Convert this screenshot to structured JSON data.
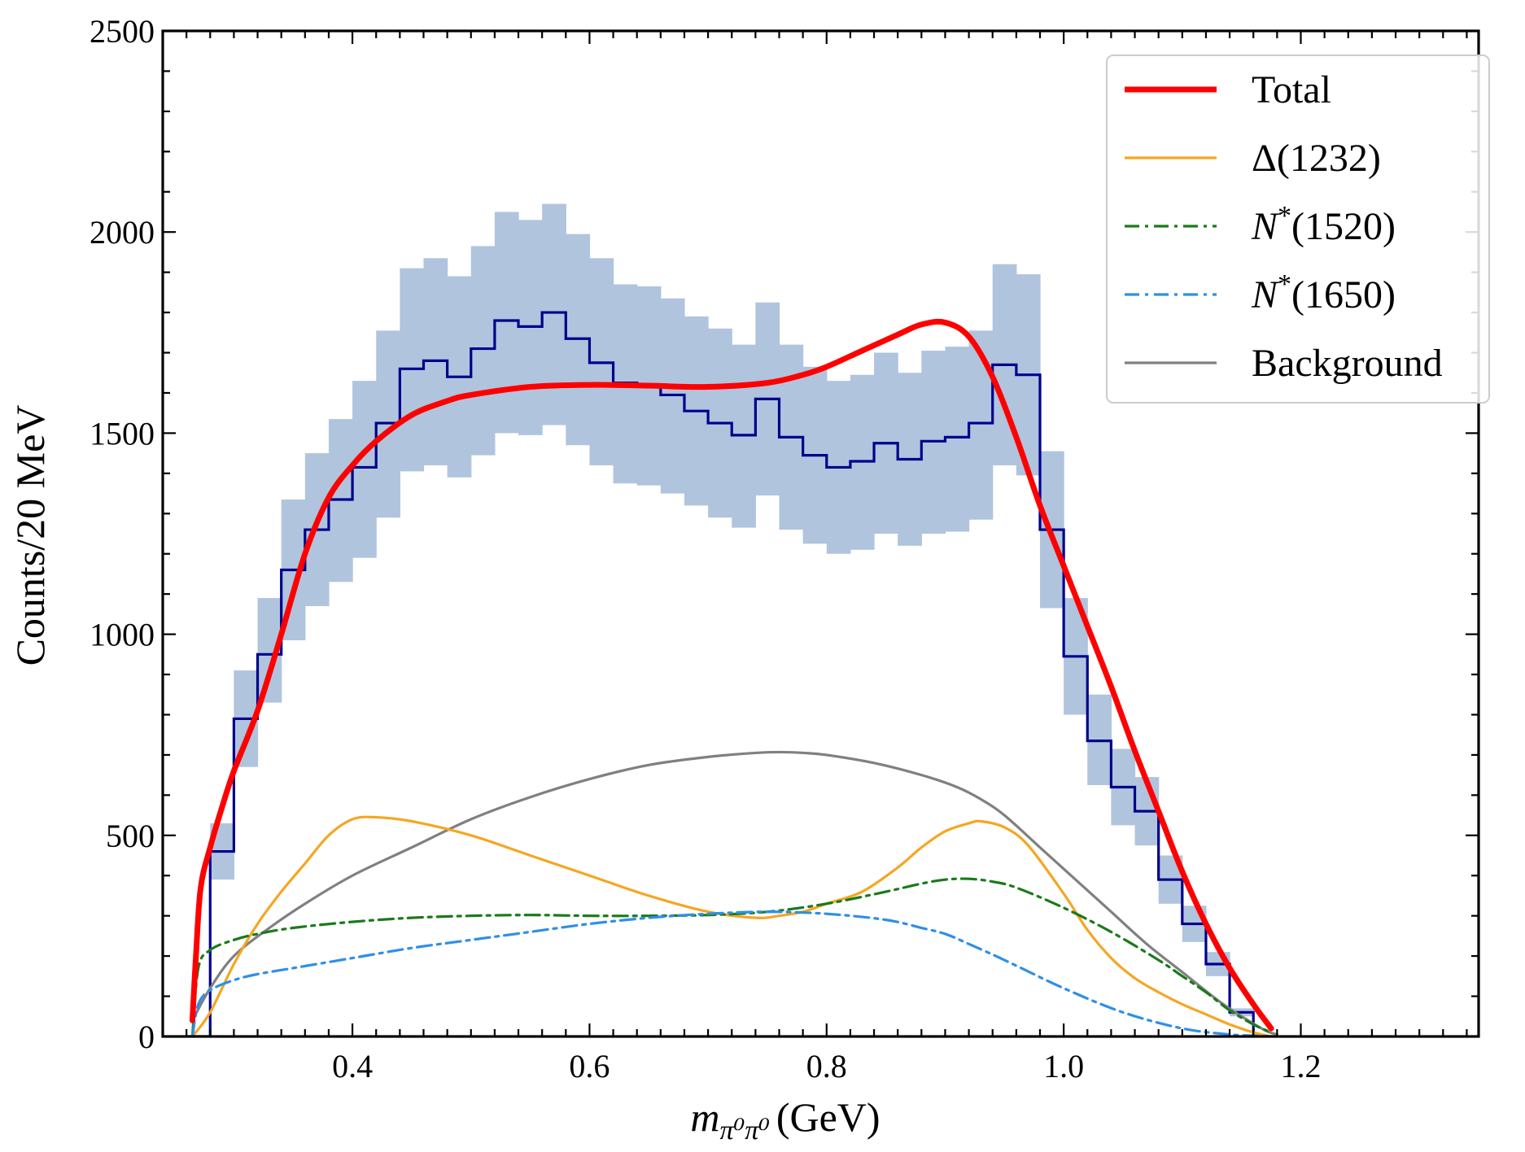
{
  "chart_data": {
    "type": "line",
    "xlabel": {
      "symbol": "m",
      "subscript": "π⁰π⁰",
      "unit": "(GeV)"
    },
    "ylabel": "Counts/20 MeV",
    "xlim": [
      0.24,
      1.35
    ],
    "ylim": [
      0,
      2500
    ],
    "xticks": [
      "0.4",
      "0.6",
      "0.8",
      "1.0",
      "1.2"
    ],
    "xtick_values": [
      0.4,
      0.6,
      0.8,
      1.0,
      1.2
    ],
    "yticks": [
      "0",
      "500",
      "1000",
      "1500",
      "2000",
      "2500"
    ],
    "ytick_values": [
      0,
      500,
      1000,
      1500,
      2000,
      2500
    ],
    "legend_position": "top-right",
    "grid": false,
    "histogram": {
      "bin_edges": [
        0.26,
        0.28,
        0.3,
        0.32,
        0.34,
        0.36,
        0.38,
        0.4,
        0.42,
        0.44,
        0.46,
        0.48,
        0.5,
        0.52,
        0.54,
        0.56,
        0.58,
        0.6,
        0.62,
        0.64,
        0.66,
        0.68,
        0.7,
        0.72,
        0.74,
        0.76,
        0.78,
        0.8,
        0.82,
        0.84,
        0.86,
        0.88,
        0.9,
        0.92,
        0.94,
        0.96,
        0.98,
        1.0,
        1.02,
        1.04,
        1.06,
        1.08,
        1.1,
        1.12,
        1.14,
        1.16,
        1.18
      ],
      "values": [
        0,
        460,
        790,
        950,
        1160,
        1260,
        1335,
        1415,
        1525,
        1660,
        1680,
        1640,
        1710,
        1780,
        1765,
        1800,
        1735,
        1675,
        1625,
        1620,
        1595,
        1555,
        1525,
        1495,
        1585,
        1490,
        1445,
        1415,
        1430,
        1475,
        1435,
        1480,
        1490,
        1525,
        1670,
        1645,
        1260,
        945,
        735,
        620,
        560,
        390,
        280,
        180,
        60,
        0
      ],
      "band_low": [
        0,
        390,
        670,
        830,
        985,
        1070,
        1130,
        1190,
        1290,
        1405,
        1420,
        1390,
        1445,
        1500,
        1495,
        1520,
        1470,
        1420,
        1375,
        1370,
        1350,
        1320,
        1290,
        1265,
        1345,
        1260,
        1225,
        1200,
        1210,
        1250,
        1220,
        1250,
        1255,
        1285,
        1420,
        1395,
        1065,
        800,
        625,
        525,
        475,
        330,
        235,
        150,
        50,
        0
      ],
      "band_high": [
        0,
        530,
        910,
        1090,
        1335,
        1450,
        1535,
        1630,
        1755,
        1910,
        1935,
        1890,
        1965,
        2050,
        2030,
        2070,
        1995,
        1935,
        1870,
        1865,
        1835,
        1790,
        1760,
        1720,
        1825,
        1720,
        1665,
        1630,
        1645,
        1700,
        1650,
        1705,
        1715,
        1755,
        1920,
        1895,
        1455,
        1090,
        850,
        715,
        645,
        450,
        325,
        210,
        70,
        0
      ],
      "line_color": "#00008b",
      "band_color": "#b0c4de"
    },
    "series": [
      {
        "name": "Total",
        "color": "#ff0000",
        "style": "solid",
        "x": [
          0.265,
          0.268,
          0.272,
          0.28,
          0.29,
          0.3,
          0.32,
          0.34,
          0.36,
          0.38,
          0.4,
          0.42,
          0.45,
          0.48,
          0.5,
          0.55,
          0.6,
          0.65,
          0.7,
          0.75,
          0.78,
          0.8,
          0.83,
          0.86,
          0.88,
          0.9,
          0.92,
          0.94,
          0.96,
          0.98,
          1.0,
          1.02,
          1.04,
          1.06,
          1.08,
          1.1,
          1.12,
          1.14,
          1.16,
          1.175
        ],
        "y": [
          40,
          200,
          370,
          470,
          570,
          660,
          810,
          1000,
          1200,
          1340,
          1420,
          1480,
          1545,
          1580,
          1595,
          1615,
          1620,
          1618,
          1615,
          1625,
          1645,
          1665,
          1705,
          1745,
          1770,
          1775,
          1740,
          1640,
          1490,
          1320,
          1170,
          1020,
          870,
          710,
          560,
          410,
          280,
          170,
          80,
          20
        ]
      },
      {
        "name": "Δ(1232)",
        "color": "#f5a623",
        "style": "solid",
        "x": [
          0.265,
          0.28,
          0.3,
          0.32,
          0.34,
          0.36,
          0.38,
          0.4,
          0.42,
          0.45,
          0.5,
          0.55,
          0.6,
          0.65,
          0.7,
          0.74,
          0.76,
          0.78,
          0.8,
          0.83,
          0.86,
          0.88,
          0.9,
          0.92,
          0.93,
          0.95,
          0.97,
          1.0,
          1.02,
          1.04,
          1.06,
          1.08,
          1.1,
          1.12,
          1.14,
          1.16,
          1.175
        ],
        "y": [
          0,
          60,
          180,
          280,
          360,
          430,
          500,
          540,
          545,
          535,
          500,
          450,
          400,
          350,
          310,
          295,
          300,
          310,
          330,
          360,
          420,
          470,
          510,
          530,
          535,
          520,
          475,
          355,
          265,
          195,
          145,
          110,
          80,
          55,
          30,
          10,
          0
        ]
      },
      {
        "name": "N*(1520)",
        "color": "#1a7a1a",
        "style": "dashdot",
        "x": [
          0.265,
          0.27,
          0.28,
          0.3,
          0.32,
          0.35,
          0.4,
          0.45,
          0.5,
          0.55,
          0.6,
          0.65,
          0.7,
          0.75,
          0.8,
          0.85,
          0.88,
          0.9,
          0.92,
          0.94,
          0.96,
          1.0,
          1.04,
          1.08,
          1.1,
          1.12,
          1.14,
          1.16,
          1.175
        ],
        "y": [
          0,
          170,
          215,
          240,
          255,
          270,
          285,
          295,
          300,
          302,
          300,
          300,
          302,
          310,
          330,
          360,
          380,
          390,
          392,
          385,
          370,
          320,
          260,
          190,
          150,
          110,
          65,
          30,
          10
        ]
      },
      {
        "name": "N*(1650)",
        "color": "#2e8fe8",
        "style": "dashdot",
        "x": [
          0.265,
          0.27,
          0.28,
          0.3,
          0.32,
          0.35,
          0.4,
          0.45,
          0.5,
          0.55,
          0.6,
          0.65,
          0.7,
          0.75,
          0.8,
          0.85,
          0.88,
          0.9,
          0.92,
          0.95,
          1.0,
          1.05,
          1.1,
          1.14,
          1.16,
          1.175
        ],
        "y": [
          0,
          80,
          115,
          140,
          155,
          170,
          195,
          220,
          240,
          260,
          280,
          295,
          305,
          310,
          305,
          290,
          270,
          255,
          230,
          190,
          120,
          60,
          20,
          5,
          2,
          0
        ]
      },
      {
        "name": "Background",
        "color": "#808080",
        "style": "solid",
        "x": [
          0.265,
          0.28,
          0.3,
          0.33,
          0.36,
          0.4,
          0.45,
          0.5,
          0.55,
          0.6,
          0.65,
          0.7,
          0.74,
          0.76,
          0.78,
          0.8,
          0.84,
          0.88,
          0.91,
          0.93,
          0.95,
          0.98,
          1.01,
          1.04,
          1.07,
          1.1,
          1.13,
          1.15,
          1.17,
          1.18
        ],
        "y": [
          40,
          120,
          200,
          270,
          330,
          400,
          470,
          540,
          595,
          640,
          675,
          695,
          705,
          707,
          705,
          700,
          680,
          650,
          620,
          590,
          550,
          470,
          390,
          310,
          230,
          160,
          90,
          50,
          15,
          5
        ]
      }
    ]
  }
}
